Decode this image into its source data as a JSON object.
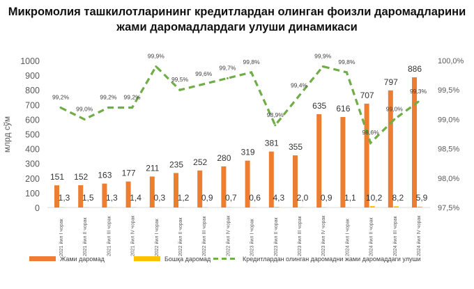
{
  "chart_data": {
    "type": "bar+line",
    "title": "Микромолия ташкилотларининг кредитлардан олинган фоизли даромадларини жами даромадлардаги улуши динамикаси",
    "ylabel": "млрд сўм",
    "ylim": [
      0,
      1000
    ],
    "yticks": [
      "0",
      "100",
      "200",
      "300",
      "400",
      "500",
      "600",
      "700",
      "800",
      "900",
      "1000"
    ],
    "y2lim": [
      97.5,
      100.0
    ],
    "y2ticks": [
      "97,5%",
      "98,0%",
      "98,5%",
      "99,0%",
      "99,5%",
      "100,0%"
    ],
    "grid": false,
    "legend_position": "bottom",
    "categories": [
      "2021 йил I чорак",
      "2021 йил II чорак",
      "2021 йил III чорак",
      "2021 йил IV чорак",
      "2022 йил I чорак",
      "2022 йил II чорак",
      "2022 йил III чорак",
      "2022 йил IV чорак",
      "2023 йил I чорак",
      "2023 йил II чорак",
      "2023 йил III чорак",
      "2023 йил IV чорак",
      "2024 йил I чорак",
      "2024 йил II чорак",
      "2024 йил III чорак",
      "2024 йил IV чорак"
    ],
    "series": [
      {
        "name": "Жами даромад",
        "type": "bar",
        "axis": "left",
        "color": "#ED7D31",
        "values": [
          151,
          152,
          163,
          177,
          211,
          235,
          252,
          280,
          319,
          381,
          355,
          635,
          616,
          707,
          797,
          886
        ],
        "labels": [
          "151",
          "152",
          "163",
          "177",
          "211",
          "235",
          "252",
          "280",
          "319",
          "381",
          "355",
          "635",
          "616",
          "707",
          "797",
          "886"
        ]
      },
      {
        "name": "Бошқа даромад",
        "type": "bar",
        "axis": "left",
        "color": "#FFC000",
        "values": [
          1.3,
          1.5,
          1.3,
          1.4,
          0.3,
          1.2,
          0.9,
          0.7,
          0.6,
          4.3,
          2.0,
          0.9,
          1.1,
          10.2,
          8.2,
          5.9
        ],
        "labels": [
          "1,3",
          "1,5",
          "1,3",
          "1,4",
          "0,3",
          "1,2",
          "0,9",
          "0,7",
          "0,6",
          "4,3",
          "2,0",
          "0,9",
          "1,1",
          "10,2",
          "8,2",
          "5,9"
        ]
      },
      {
        "name": "Кредитлардан олинган даромадни жами даромаддаги улуши",
        "type": "line",
        "axis": "right",
        "color": "#70AD47",
        "dashed": true,
        "values": [
          99.2,
          99.0,
          99.2,
          99.2,
          99.9,
          99.5,
          99.6,
          99.7,
          99.8,
          98.9,
          99.4,
          99.9,
          99.8,
          98.6,
          99.0,
          99.3
        ],
        "labels": [
          "99,2%",
          "99,0%",
          "99,2%",
          "99,2%",
          "99,9%",
          "99,5%",
          "99,6%",
          "99,7%",
          "99,8%",
          "98,9%",
          "99,4%",
          "99,9%",
          "99,8%",
          "98,6%",
          "99,0%",
          "99,3%"
        ]
      }
    ]
  }
}
